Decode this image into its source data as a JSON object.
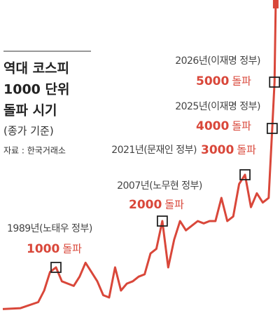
{
  "chart_data": {
    "type": "line",
    "title": [
      "역대 코스피",
      "1000 단위",
      "돌파 시기"
    ],
    "subtitle": "(종가 기준)",
    "source": "자료 : 한국거래소",
    "color": "#d9473a",
    "x": [
      1980,
      1983,
      1986,
      1987,
      1988,
      1989,
      1990,
      1991,
      1992,
      1993,
      1994,
      1995,
      1996,
      1997,
      1998,
      1999,
      2000,
      2001,
      2002,
      2003,
      2004,
      2005,
      2006,
      2007,
      2008,
      2009,
      2010,
      2011,
      2012,
      2013,
      2014,
      2015,
      2016,
      2017,
      2018,
      2019,
      2020,
      2021,
      2022,
      2023,
      2024,
      2025,
      2025.6,
      2026,
      2026.2
    ],
    "values": [
      100,
      120,
      250,
      500,
      900,
      1000,
      700,
      650,
      600,
      800,
      1100,
      900,
      700,
      400,
      350,
      1000,
      500,
      650,
      700,
      800,
      850,
      1300,
      1400,
      2000,
      1000,
      1600,
      2000,
      1800,
      1900,
      2000,
      1950,
      2000,
      2000,
      2500,
      2000,
      2100,
      2800,
      3000,
      2300,
      2600,
      2400,
      2500,
      4000,
      5000,
      6700
    ],
    "annotations": [
      {
        "period": "1989년(노태우 정부)",
        "value": 1000,
        "suffix": "돌파",
        "x": 1989
      },
      {
        "period": "2007년(노무현 정부)",
        "value": 2000,
        "suffix": "돌파",
        "x": 2007
      },
      {
        "period": "2021년(문재인 정부)",
        "value": 3000,
        "suffix": "돌파",
        "x": 2021
      },
      {
        "period": "2025년(이재명 정부)",
        "value": 4000,
        "suffix": "돌파",
        "x": 2025.6
      },
      {
        "period": "2026년(이재명 정부)",
        "value": 5000,
        "suffix": "돌파",
        "x": 2026
      }
    ]
  }
}
